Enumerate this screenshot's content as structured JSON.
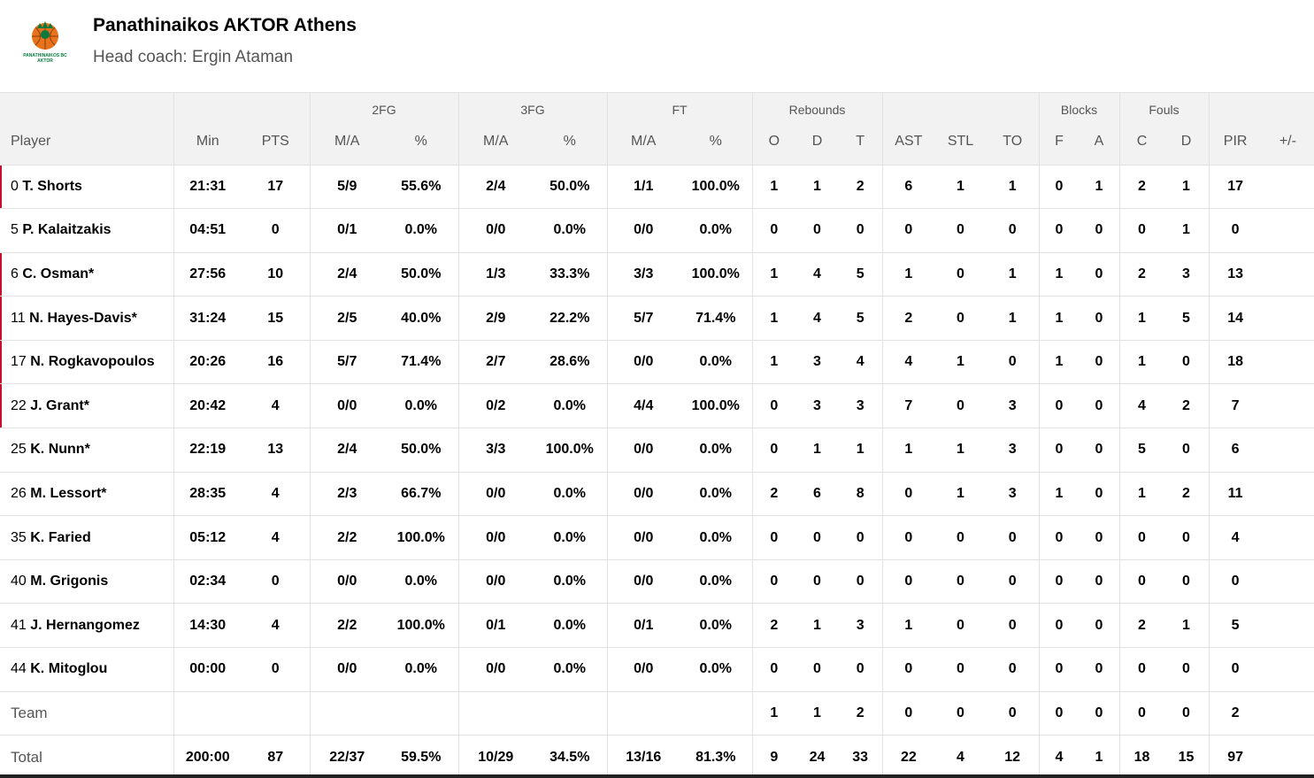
{
  "team": {
    "name": "Panathinaikos AKTOR Athens",
    "coach": "Head coach: Ergin Ataman",
    "logo_text_1": "PANATHINAIKOS BC",
    "logo_text_2": "AKTOR",
    "colors": {
      "logo_green": "#0a7a3e",
      "logo_orange": "#e8731c",
      "starter_marker": "#c8102e"
    }
  },
  "headers": {
    "player": "Player",
    "min": "Min",
    "pts": "PTS",
    "fg2": {
      "group": "2FG",
      "ma": "M/A",
      "pct": "%"
    },
    "fg3": {
      "group": "3FG",
      "ma": "M/A",
      "pct": "%"
    },
    "ft": {
      "group": "FT",
      "ma": "M/A",
      "pct": "%"
    },
    "reb": {
      "group": "Rebounds",
      "o": "O",
      "d": "D",
      "t": "T"
    },
    "ast": "AST",
    "stl": "STL",
    "to": "TO",
    "blk": {
      "group": "Blocks",
      "f": "F",
      "a": "A"
    },
    "fouls": {
      "group": "Fouls",
      "c": "C",
      "d": "D"
    },
    "pir": "PIR",
    "pm": "+/-"
  },
  "players": [
    {
      "num": "0",
      "name": "T. Shorts",
      "starter": true,
      "min": "21:31",
      "pts": "17",
      "fg2_ma": "5/9",
      "fg2_pct": "55.6%",
      "fg3_ma": "2/4",
      "fg3_pct": "50.0%",
      "ft_ma": "1/1",
      "ft_pct": "100.0%",
      "reb_o": "1",
      "reb_d": "1",
      "reb_t": "2",
      "ast": "6",
      "stl": "1",
      "to": "1",
      "blk_f": "0",
      "blk_a": "1",
      "foul_c": "2",
      "foul_d": "1",
      "pir": "17",
      "pm": ""
    },
    {
      "num": "5",
      "name": "P. Kalaitzakis",
      "starter": false,
      "min": "04:51",
      "pts": "0",
      "fg2_ma": "0/1",
      "fg2_pct": "0.0%",
      "fg3_ma": "0/0",
      "fg3_pct": "0.0%",
      "ft_ma": "0/0",
      "ft_pct": "0.0%",
      "reb_o": "0",
      "reb_d": "0",
      "reb_t": "0",
      "ast": "0",
      "stl": "0",
      "to": "0",
      "blk_f": "0",
      "blk_a": "0",
      "foul_c": "0",
      "foul_d": "1",
      "pir": "0",
      "pm": ""
    },
    {
      "num": "6",
      "name": "C. Osman*",
      "starter": true,
      "min": "27:56",
      "pts": "10",
      "fg2_ma": "2/4",
      "fg2_pct": "50.0%",
      "fg3_ma": "1/3",
      "fg3_pct": "33.3%",
      "ft_ma": "3/3",
      "ft_pct": "100.0%",
      "reb_o": "1",
      "reb_d": "4",
      "reb_t": "5",
      "ast": "1",
      "stl": "0",
      "to": "1",
      "blk_f": "1",
      "blk_a": "0",
      "foul_c": "2",
      "foul_d": "3",
      "pir": "13",
      "pm": ""
    },
    {
      "num": "11",
      "name": "N. Hayes-Davis*",
      "starter": true,
      "min": "31:24",
      "pts": "15",
      "fg2_ma": "2/5",
      "fg2_pct": "40.0%",
      "fg3_ma": "2/9",
      "fg3_pct": "22.2%",
      "ft_ma": "5/7",
      "ft_pct": "71.4%",
      "reb_o": "1",
      "reb_d": "4",
      "reb_t": "5",
      "ast": "2",
      "stl": "0",
      "to": "1",
      "blk_f": "1",
      "blk_a": "0",
      "foul_c": "1",
      "foul_d": "5",
      "pir": "14",
      "pm": ""
    },
    {
      "num": "17",
      "name": "N. Rogkavopoulos",
      "starter": true,
      "min": "20:26",
      "pts": "16",
      "fg2_ma": "5/7",
      "fg2_pct": "71.4%",
      "fg3_ma": "2/7",
      "fg3_pct": "28.6%",
      "ft_ma": "0/0",
      "ft_pct": "0.0%",
      "reb_o": "1",
      "reb_d": "3",
      "reb_t": "4",
      "ast": "4",
      "stl": "1",
      "to": "0",
      "blk_f": "1",
      "blk_a": "0",
      "foul_c": "1",
      "foul_d": "0",
      "pir": "18",
      "pm": ""
    },
    {
      "num": "22",
      "name": "J. Grant*",
      "starter": true,
      "min": "20:42",
      "pts": "4",
      "fg2_ma": "0/0",
      "fg2_pct": "0.0%",
      "fg3_ma": "0/2",
      "fg3_pct": "0.0%",
      "ft_ma": "4/4",
      "ft_pct": "100.0%",
      "reb_o": "0",
      "reb_d": "3",
      "reb_t": "3",
      "ast": "7",
      "stl": "0",
      "to": "3",
      "blk_f": "0",
      "blk_a": "0",
      "foul_c": "4",
      "foul_d": "2",
      "pir": "7",
      "pm": ""
    },
    {
      "num": "25",
      "name": "K. Nunn*",
      "starter": false,
      "min": "22:19",
      "pts": "13",
      "fg2_ma": "2/4",
      "fg2_pct": "50.0%",
      "fg3_ma": "3/3",
      "fg3_pct": "100.0%",
      "ft_ma": "0/0",
      "ft_pct": "0.0%",
      "reb_o": "0",
      "reb_d": "1",
      "reb_t": "1",
      "ast": "1",
      "stl": "1",
      "to": "3",
      "blk_f": "0",
      "blk_a": "0",
      "foul_c": "5",
      "foul_d": "0",
      "pir": "6",
      "pm": ""
    },
    {
      "num": "26",
      "name": "M. Lessort*",
      "starter": false,
      "min": "28:35",
      "pts": "4",
      "fg2_ma": "2/3",
      "fg2_pct": "66.7%",
      "fg3_ma": "0/0",
      "fg3_pct": "0.0%",
      "ft_ma": "0/0",
      "ft_pct": "0.0%",
      "reb_o": "2",
      "reb_d": "6",
      "reb_t": "8",
      "ast": "0",
      "stl": "1",
      "to": "3",
      "blk_f": "1",
      "blk_a": "0",
      "foul_c": "1",
      "foul_d": "2",
      "pir": "11",
      "pm": ""
    },
    {
      "num": "35",
      "name": "K. Faried",
      "starter": false,
      "min": "05:12",
      "pts": "4",
      "fg2_ma": "2/2",
      "fg2_pct": "100.0%",
      "fg3_ma": "0/0",
      "fg3_pct": "0.0%",
      "ft_ma": "0/0",
      "ft_pct": "0.0%",
      "reb_o": "0",
      "reb_d": "0",
      "reb_t": "0",
      "ast": "0",
      "stl": "0",
      "to": "0",
      "blk_f": "0",
      "blk_a": "0",
      "foul_c": "0",
      "foul_d": "0",
      "pir": "4",
      "pm": ""
    },
    {
      "num": "40",
      "name": "M. Grigonis",
      "starter": false,
      "min": "02:34",
      "pts": "0",
      "fg2_ma": "0/0",
      "fg2_pct": "0.0%",
      "fg3_ma": "0/0",
      "fg3_pct": "0.0%",
      "ft_ma": "0/0",
      "ft_pct": "0.0%",
      "reb_o": "0",
      "reb_d": "0",
      "reb_t": "0",
      "ast": "0",
      "stl": "0",
      "to": "0",
      "blk_f": "0",
      "blk_a": "0",
      "foul_c": "0",
      "foul_d": "0",
      "pir": "0",
      "pm": ""
    },
    {
      "num": "41",
      "name": "J. Hernangomez",
      "starter": false,
      "min": "14:30",
      "pts": "4",
      "fg2_ma": "2/2",
      "fg2_pct": "100.0%",
      "fg3_ma": "0/1",
      "fg3_pct": "0.0%",
      "ft_ma": "0/1",
      "ft_pct": "0.0%",
      "reb_o": "2",
      "reb_d": "1",
      "reb_t": "3",
      "ast": "1",
      "stl": "0",
      "to": "0",
      "blk_f": "0",
      "blk_a": "0",
      "foul_c": "2",
      "foul_d": "1",
      "pir": "5",
      "pm": ""
    },
    {
      "num": "44",
      "name": "K. Mitoglou",
      "starter": false,
      "min": "00:00",
      "pts": "0",
      "fg2_ma": "0/0",
      "fg2_pct": "0.0%",
      "fg3_ma": "0/0",
      "fg3_pct": "0.0%",
      "ft_ma": "0/0",
      "ft_pct": "0.0%",
      "reb_o": "0",
      "reb_d": "0",
      "reb_t": "0",
      "ast": "0",
      "stl": "0",
      "to": "0",
      "blk_f": "0",
      "blk_a": "0",
      "foul_c": "0",
      "foul_d": "0",
      "pir": "0",
      "pm": ""
    }
  ],
  "team_row": {
    "label": "Team",
    "reb_o": "1",
    "reb_d": "1",
    "reb_t": "2",
    "ast": "0",
    "stl": "0",
    "to": "0",
    "blk_f": "0",
    "blk_a": "0",
    "foul_c": "0",
    "foul_d": "0",
    "pir": "2"
  },
  "total_row": {
    "label": "Total",
    "min": "200:00",
    "pts": "87",
    "fg2_ma": "22/37",
    "fg2_pct": "59.5%",
    "fg3_ma": "10/29",
    "fg3_pct": "34.5%",
    "ft_ma": "13/16",
    "ft_pct": "81.3%",
    "reb_o": "9",
    "reb_d": "24",
    "reb_t": "33",
    "ast": "22",
    "stl": "4",
    "to": "12",
    "blk_f": "4",
    "blk_a": "1",
    "foul_c": "18",
    "foul_d": "15",
    "pir": "97",
    "pm": ""
  }
}
